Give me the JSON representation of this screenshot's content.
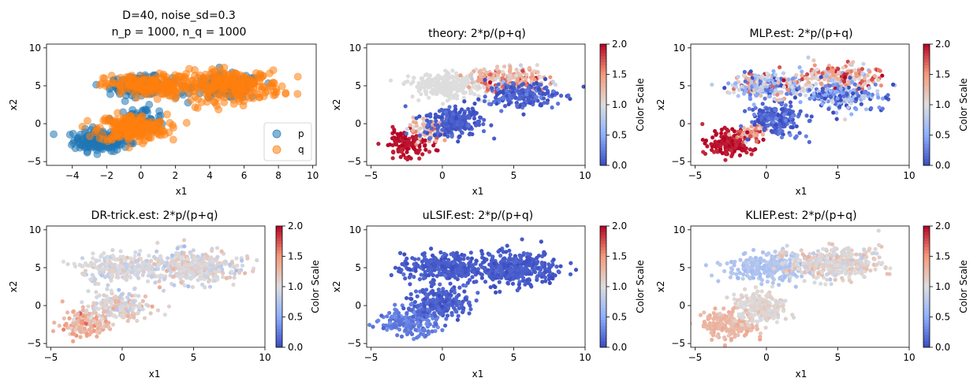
{
  "chart_data": [
    {
      "type": "scatter",
      "title_line1": "D=40, noise_sd=0.3",
      "title_line2": "n_p = 1000, n_q = 1000",
      "xlabel": "x1",
      "ylabel": "x2",
      "xlim": [
        -5.5,
        10.2
      ],
      "ylim": [
        -5.5,
        10.5
      ],
      "xticks": [
        -4,
        -2,
        0,
        2,
        4,
        6,
        8,
        10
      ],
      "yticks": [
        -5,
        0,
        5,
        10
      ],
      "legend": {
        "position": "lower-right",
        "entries": [
          "p",
          "q"
        ]
      },
      "series": [
        {
          "name": "p",
          "color": "#1f77b4",
          "clusters": [
            {
              "center": [
                -2.3,
                -2.2
              ],
              "spread": [
                0.8,
                0.7
              ],
              "n": 190
            },
            {
              "center": [
                0.0,
                5.0
              ],
              "spread": [
                0.9,
                0.6
              ],
              "n": 150
            },
            {
              "center": [
                5.0,
                4.8
              ],
              "spread": [
                1.0,
                0.8
              ],
              "n": 130
            },
            {
              "center": [
                0.0,
                0.6
              ],
              "spread": [
                0.8,
                0.8
              ],
              "n": 60
            }
          ]
        },
        {
          "name": "q",
          "color": "#ff7f0e",
          "clusters": [
            {
              "center": [
                -0.5,
                -0.6
              ],
              "spread": [
                1.0,
                0.9
              ],
              "n": 200
            },
            {
              "center": [
                0.3,
                5.0
              ],
              "spread": [
                1.2,
                0.7
              ],
              "n": 170
            },
            {
              "center": [
                5.2,
                5.0
              ],
              "spread": [
                1.5,
                1.0
              ],
              "n": 250
            }
          ]
        }
      ]
    },
    {
      "type": "scatter",
      "title": "theory: 2*p/(p+q)",
      "xlabel": "x1",
      "ylabel": "x2",
      "xlim": [
        -5.3,
        10.0
      ],
      "ylim": [
        -5.5,
        10.5
      ],
      "xticks": [
        -5,
        0,
        5,
        10
      ],
      "yticks": [
        -5,
        0,
        5,
        10
      ],
      "colorbar": {
        "label": "Color Scale",
        "range": [
          0,
          2
        ],
        "ticks": [
          0.0,
          0.5,
          1.0,
          1.5,
          2.0
        ]
      },
      "clusters": [
        {
          "center": [
            -2.5,
            -2.6
          ],
          "spread": [
            0.8,
            0.8
          ],
          "n": 150,
          "value": 1.95,
          "jitter": 0.05
        },
        {
          "center": [
            -1.0,
            -0.9
          ],
          "spread": [
            0.7,
            0.6
          ],
          "n": 90,
          "value": 1.3,
          "jitter": 0.2
        },
        {
          "center": [
            0.8,
            0.2
          ],
          "spread": [
            1.0,
            1.0
          ],
          "n": 230,
          "value": 0.08,
          "jitter": 0.06
        },
        {
          "center": [
            0.3,
            5.0
          ],
          "spread": [
            1.3,
            0.8
          ],
          "n": 260,
          "value": 1.0,
          "jitter": 0.0
        },
        {
          "center": [
            4.6,
            5.8
          ],
          "spread": [
            1.4,
            0.8
          ],
          "n": 220,
          "value": 1.35,
          "jitter": 0.25
        },
        {
          "center": [
            5.6,
            3.8
          ],
          "spread": [
            1.3,
            0.9
          ],
          "n": 200,
          "value": 0.1,
          "jitter": 0.08
        }
      ]
    },
    {
      "type": "scatter",
      "title": "MLP.est: 2*p/(p+q)",
      "xlabel": "x1",
      "ylabel": "x2",
      "xlim": [
        -5.3,
        10.0
      ],
      "ylim": [
        -5.5,
        10.5
      ],
      "xticks": [
        -5,
        0,
        5,
        10
      ],
      "yticks": [
        -5,
        0,
        5,
        10
      ],
      "colorbar": {
        "label": "Color Scale",
        "range": [
          0,
          2
        ],
        "ticks": [
          0.0,
          0.5,
          1.0,
          1.5,
          2.0
        ]
      },
      "clusters": [
        {
          "center": [
            -2.6,
            -2.6
          ],
          "spread": [
            0.8,
            0.8
          ],
          "n": 170,
          "value": 1.95,
          "jitter": 0.05
        },
        {
          "center": [
            -1.2,
            -1.2
          ],
          "spread": [
            0.6,
            0.5
          ],
          "n": 60,
          "value": 1.5,
          "jitter": 0.3
        },
        {
          "center": [
            0.7,
            0.6
          ],
          "spread": [
            0.9,
            1.0
          ],
          "n": 200,
          "value": 0.12,
          "jitter": 0.1
        },
        {
          "center": [
            0.0,
            5.0
          ],
          "spread": [
            1.3,
            0.8
          ],
          "n": 240,
          "value": 0.8,
          "jitter": 0.45
        },
        {
          "center": [
            4.8,
            6.0
          ],
          "spread": [
            1.5,
            0.9
          ],
          "n": 220,
          "value": 1.3,
          "jitter": 0.35
        },
        {
          "center": [
            5.4,
            3.6
          ],
          "spread": [
            1.4,
            0.9
          ],
          "n": 190,
          "value": 0.35,
          "jitter": 0.35
        }
      ]
    },
    {
      "type": "scatter",
      "title": "DR-trick.est: 2*p/(p+q)",
      "xlabel": "x1",
      "ylabel": "x2",
      "xlim": [
        -5.3,
        10.0
      ],
      "ylim": [
        -5.5,
        10.5
      ],
      "xticks": [
        -5,
        0,
        5,
        10
      ],
      "yticks": [
        -5,
        0,
        5,
        10
      ],
      "colorbar": {
        "label": "Color Scale",
        "range": [
          0,
          2
        ],
        "ticks": [
          0.0,
          0.5,
          1.0,
          1.5,
          2.0
        ]
      },
      "clusters": [
        {
          "center": [
            -2.6,
            -2.3
          ],
          "spread": [
            0.8,
            0.8
          ],
          "n": 160,
          "value": 1.3,
          "jitter": 0.15
        },
        {
          "center": [
            -0.3,
            -0.2
          ],
          "spread": [
            1.0,
            1.0
          ],
          "n": 200,
          "value": 1.05,
          "jitter": 0.15
        },
        {
          "center": [
            0.0,
            5.0
          ],
          "spread": [
            1.4,
            0.9
          ],
          "n": 260,
          "value": 0.98,
          "jitter": 0.1
        },
        {
          "center": [
            5.0,
            5.0
          ],
          "spread": [
            1.6,
            1.1
          ],
          "n": 380,
          "value": 1.0,
          "jitter": 0.12
        }
      ]
    },
    {
      "type": "scatter",
      "title": "uLSIF.est: 2*p/(p+q)",
      "xlabel": "x1",
      "ylabel": "x2",
      "xlim": [
        -5.3,
        10.0
      ],
      "ylim": [
        -5.5,
        10.5
      ],
      "xticks": [
        -5,
        0,
        5,
        10
      ],
      "yticks": [
        -5,
        0,
        5,
        10
      ],
      "colorbar": {
        "label": "Color Scale",
        "range": [
          0,
          2
        ],
        "ticks": [
          0.0,
          0.5,
          1.0,
          1.5,
          2.0
        ]
      },
      "clusters": [
        {
          "center": [
            -2.3,
            -2.2
          ],
          "spread": [
            1.0,
            0.9
          ],
          "n": 200,
          "value": 0.25,
          "jitter": 0.06
        },
        {
          "center": [
            0.0,
            0.3
          ],
          "spread": [
            1.0,
            1.0
          ],
          "n": 220,
          "value": 0.1,
          "jitter": 0.05
        },
        {
          "center": [
            0.0,
            5.0
          ],
          "spread": [
            1.4,
            0.9
          ],
          "n": 280,
          "value": 0.08,
          "jitter": 0.04
        },
        {
          "center": [
            5.0,
            4.8
          ],
          "spread": [
            1.6,
            1.1
          ],
          "n": 340,
          "value": 0.07,
          "jitter": 0.04
        }
      ]
    },
    {
      "type": "scatter",
      "title": "KLIEP.est: 2*p/(p+q)",
      "xlabel": "x1",
      "ylabel": "x2",
      "xlim": [
        -5.3,
        10.0
      ],
      "ylim": [
        -5.5,
        10.5
      ],
      "xticks": [
        -5,
        0,
        5,
        10
      ],
      "yticks": [
        -5,
        0,
        5,
        10
      ],
      "colorbar": {
        "label": "Color Scale",
        "range": [
          0,
          2
        ],
        "ticks": [
          0.0,
          0.5,
          1.0,
          1.5,
          2.0
        ]
      },
      "clusters": [
        {
          "center": [
            -2.6,
            -2.6
          ],
          "spread": [
            0.9,
            0.9
          ],
          "n": 170,
          "value": 1.3,
          "jitter": 0.06
        },
        {
          "center": [
            -0.4,
            -0.2
          ],
          "spread": [
            1.0,
            1.0
          ],
          "n": 200,
          "value": 1.05,
          "jitter": 0.06
        },
        {
          "center": [
            0.0,
            5.0
          ],
          "spread": [
            1.4,
            0.9
          ],
          "n": 260,
          "value": 0.72,
          "jitter": 0.05
        },
        {
          "center": [
            4.8,
            5.6
          ],
          "spread": [
            1.6,
            1.0
          ],
          "n": 380,
          "value": 1.05,
          "jitter": 0.12
        }
      ]
    }
  ]
}
